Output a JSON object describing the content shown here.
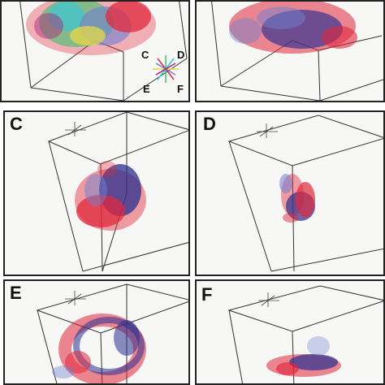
{
  "figure": {
    "panels": [
      {
        "id": "A",
        "label": ""
      },
      {
        "id": "B",
        "label": ""
      },
      {
        "id": "C",
        "label": "C"
      },
      {
        "id": "D",
        "label": "D"
      },
      {
        "id": "E",
        "label": "E"
      },
      {
        "id": "F",
        "label": "F"
      }
    ],
    "color_wheel": {
      "labels": {
        "top_left": "C",
        "top_right": "D",
        "bottom_left": "E",
        "bottom_right": "F"
      }
    },
    "colors": {
      "red": "#e0283c",
      "blue": "#2a2f8f",
      "magenta": "#b0207a",
      "light_blue": "#6f7fd0",
      "green": "#3fbf6a",
      "cyan": "#3ac6d6",
      "yellow": "#e6d84a",
      "frame": "#333333"
    }
  }
}
